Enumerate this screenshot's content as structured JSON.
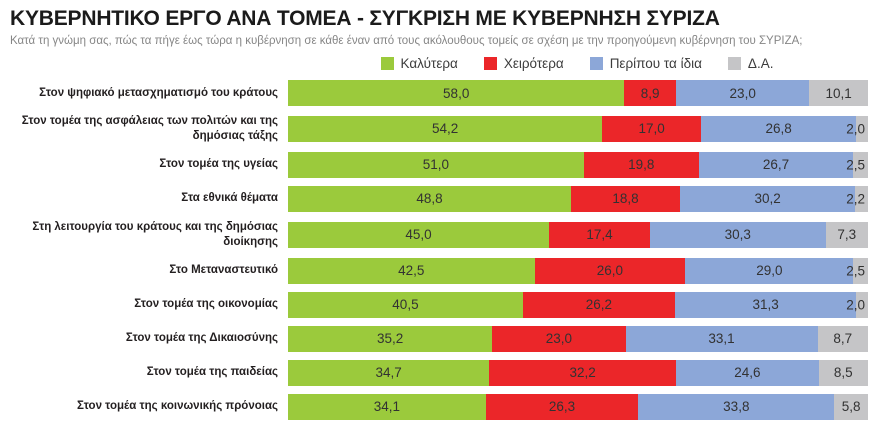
{
  "title": "ΚΥΒΕΡΝΗΤΙΚΟ ΕΡΓΟ ΑΝΑ ΤΟΜΕΑ - ΣΥΓΚΡΙΣΗ ΜΕ ΚΥΒΕΡΝΗΣΗ ΣΥΡΙΖΑ",
  "subtitle": "Κατά τη γνώμη σας, πώς τα πήγε έως τώρα η κυβέρνηση σε κάθε έναν από τους ακόλουθους τομείς σε σχέση με την προηγούμενη κυβέρνηση του ΣΥΡΙΖΑ;",
  "colors": {
    "better": "#9BCA3C",
    "worse": "#EB2629",
    "same": "#8CA7D8",
    "dk": "#C5C5C7",
    "segment_text": "#323232",
    "category_text": "#231F20",
    "title_text": "#1B1B1B",
    "subtitle_text": "#868686"
  },
  "chart_data": {
    "type": "bar",
    "orientation": "horizontal",
    "stacked": true,
    "title": "ΚΥΒΕΡΝΗΤΙΚΟ ΕΡΓΟ ΑΝΑ ΤΟΜΕΑ - ΣΥΓΚΡΙΣΗ ΜΕ ΚΥΒΕΡΝΗΣΗ ΣΥΡΙΖΑ",
    "subtitle": "Κατά τη γνώμη σας, πώς τα πήγε έως τώρα η κυβέρνηση σε κάθε έναν από τους ακόλουθους τομείς σε σχέση με την προηγούμενη κυβέρνηση του ΣΥΡΙΖΑ;",
    "legend_position": "top",
    "xlim": [
      0,
      100
    ],
    "value_format": "one-decimal-comma",
    "categories": [
      "Στον ψηφιακό μετασχηματισμό του κράτους",
      "Στον τομέα της ασφάλειας των πολιτών και της δημόσιας τάξης",
      "Στον τομέα της υγείας",
      "Στα εθνικά θέματα",
      "Στη λειτουργία του κράτους και της δημόσιας διοίκησης",
      "Στο Μεταναστευτικό",
      "Στον τομέα της οικονομίας",
      "Στον τομέα της Δικαιοσύνης",
      "Στον τομέα της παιδείας",
      "Στον τομέα της κοινωνικής πρόνοιας"
    ],
    "series": [
      {
        "name": "Καλύτερα",
        "color": "#9BCA3C",
        "values": [
          58.0,
          54.2,
          51.0,
          48.8,
          45.0,
          42.5,
          40.5,
          35.2,
          34.7,
          34.1
        ]
      },
      {
        "name": "Χειρότερα",
        "color": "#EB2629",
        "values": [
          8.9,
          17.0,
          19.8,
          18.8,
          17.4,
          26.0,
          26.2,
          23.0,
          32.2,
          26.3
        ]
      },
      {
        "name": "Περίπου τα ίδια",
        "color": "#8CA7D8",
        "values": [
          23.0,
          26.8,
          26.7,
          30.2,
          30.3,
          29.0,
          31.3,
          33.1,
          24.6,
          33.8
        ]
      },
      {
        "name": "Δ.Α.",
        "color": "#C5C5C7",
        "values": [
          10.1,
          2.0,
          2.5,
          2.2,
          7.3,
          2.5,
          2.0,
          8.7,
          8.5,
          5.8
        ]
      }
    ]
  }
}
